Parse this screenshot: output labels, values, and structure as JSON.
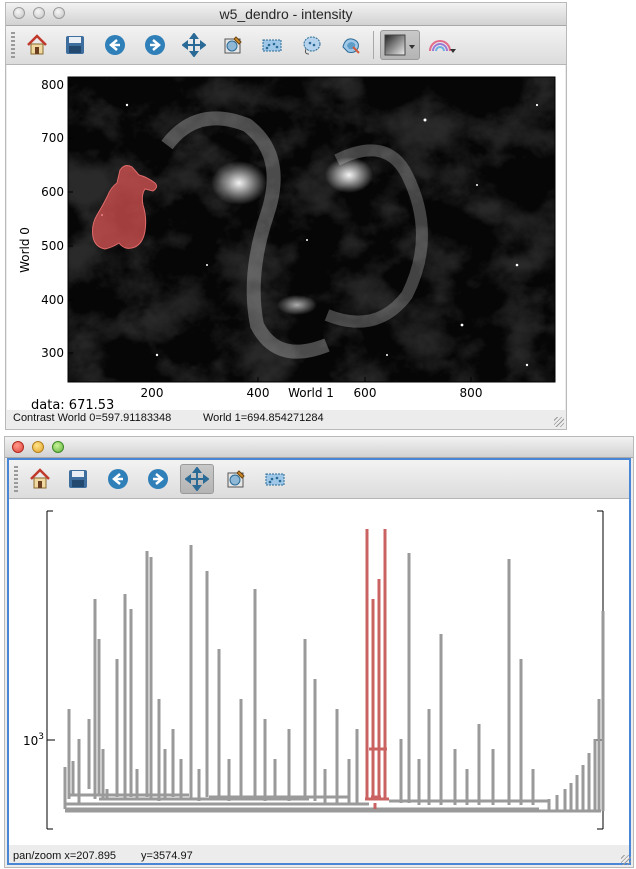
{
  "window1": {
    "title": "w5_dendro - intensity",
    "toolbar": [
      {
        "icon": "home-icon",
        "label": "Home"
      },
      {
        "icon": "save-icon",
        "label": "Save"
      },
      {
        "icon": "back-icon",
        "label": "Back"
      },
      {
        "icon": "forward-icon",
        "label": "Forward"
      },
      {
        "icon": "pan-icon",
        "label": "Pan"
      },
      {
        "icon": "select-icon",
        "label": "Select"
      },
      {
        "icon": "rectangle-select-icon",
        "label": "Rectangle"
      },
      {
        "icon": "lasso-icon",
        "label": "Lasso"
      },
      {
        "icon": "contour-icon",
        "label": "Contour"
      },
      {
        "icon": "colormap-icon",
        "label": "Colormap"
      },
      {
        "icon": "rainbow-icon",
        "label": "Rainbow"
      }
    ],
    "image_plot": {
      "ylabel": "World 0",
      "xlabel": "World 1",
      "xticks": [
        "200",
        "400",
        "600",
        "800"
      ],
      "yticks": [
        "800",
        "700",
        "600",
        "500",
        "400",
        "300"
      ],
      "data_readout": "data: 671.53"
    },
    "status": {
      "contrast": "Contrast World 0=597.91183348",
      "world1": "World 1=694.854271284"
    }
  },
  "window2": {
    "toolbar": [
      {
        "icon": "home-icon",
        "label": "Home"
      },
      {
        "icon": "save-icon",
        "label": "Save"
      },
      {
        "icon": "back-icon",
        "label": "Back"
      },
      {
        "icon": "forward-icon",
        "label": "Forward"
      },
      {
        "icon": "pan-icon",
        "label": "Pan",
        "active": true
      },
      {
        "icon": "select-icon",
        "label": "Select"
      },
      {
        "icon": "rectangle-select-icon",
        "label": "Rectangle"
      }
    ],
    "dendrogram": {
      "ytick_label_base": "10",
      "ytick_label_exp": "3",
      "colors": {
        "branch": "#9a9a9a",
        "selected": "#c85a5a"
      }
    },
    "status": {
      "mode": "pan/zoom x=207.895",
      "y": "y=3574.97"
    }
  }
}
